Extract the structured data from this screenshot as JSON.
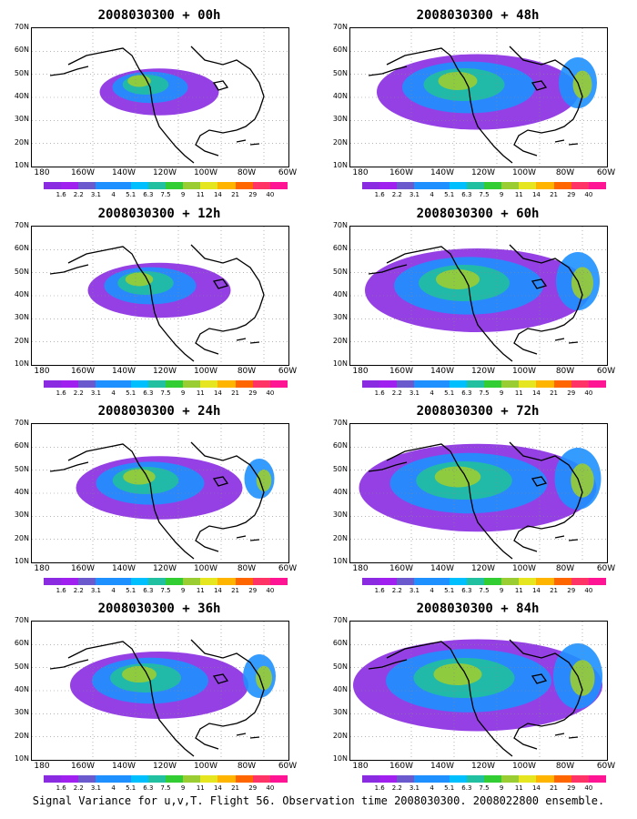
{
  "panels": [
    {
      "title": "2008030300 + 00h",
      "intensity": 0.35
    },
    {
      "title": "2008030300 + 48h",
      "intensity": 0.7
    },
    {
      "title": "2008030300 + 12h",
      "intensity": 0.45
    },
    {
      "title": "2008030300 + 60h",
      "intensity": 0.8
    },
    {
      "title": "2008030300 + 24h",
      "intensity": 0.55
    },
    {
      "title": "2008030300 + 72h",
      "intensity": 0.85
    },
    {
      "title": "2008030300 + 36h",
      "intensity": 0.6
    },
    {
      "title": "2008030300 + 84h",
      "intensity": 0.9
    }
  ],
  "y_labels": [
    "70N",
    "60N",
    "50N",
    "40N",
    "30N",
    "20N",
    "10N"
  ],
  "x_labels": [
    "180",
    "160W",
    "140W",
    "120W",
    "100W",
    "80W",
    "60W"
  ],
  "colorbar": {
    "labels": [
      "1.6",
      "2.2",
      "3.1",
      "4",
      "5.1",
      "6.3",
      "7.5",
      "9",
      "11",
      "14",
      "21",
      "29",
      "40"
    ],
    "colors": [
      "#8a2be2",
      "#a020f0",
      "#6a5acd",
      "#1e90ff",
      "#1e90ff",
      "#00bfff",
      "#20c0a0",
      "#32cd32",
      "#9acd32",
      "#e6e620",
      "#ffb400",
      "#ff6600",
      "#ff3366",
      "#ff1493"
    ]
  },
  "caption": "Signal Variance for u,v,T. Flight 56. Observation time 2008030300. 2008022800 ensemble."
}
